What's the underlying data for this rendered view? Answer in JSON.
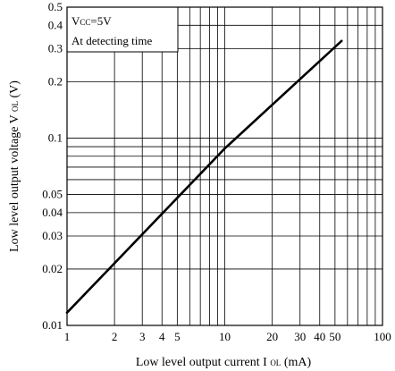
{
  "chart_data": {
    "type": "line",
    "xlabel_main": "Low level output current I",
    "xlabel_sub": "OL",
    "xlabel_unit": "(mA)",
    "ylabel_main": "Low level output voltage V",
    "ylabel_sub": "OL",
    "ylabel_unit": "(V)",
    "xscale": "log",
    "yscale": "log",
    "xlim": [
      1,
      100
    ],
    "ylim": [
      0.01,
      0.5
    ],
    "grid": true,
    "x_ticks": [
      {
        "value": 1,
        "label": "1"
      },
      {
        "value": 2,
        "label": "2"
      },
      {
        "value": 3,
        "label": "3"
      },
      {
        "value": 4,
        "label": "4"
      },
      {
        "value": 5,
        "label": "5"
      },
      {
        "value": 10,
        "label": "10"
      },
      {
        "value": 20,
        "label": "20"
      },
      {
        "value": 30,
        "label": "30"
      },
      {
        "value": 40,
        "label": "40"
      },
      {
        "value": 50,
        "label": "50"
      },
      {
        "value": 100,
        "label": "100"
      }
    ],
    "y_ticks": [
      {
        "value": 0.01,
        "label": "0.01"
      },
      {
        "value": 0.02,
        "label": "0.02"
      },
      {
        "value": 0.03,
        "label": "0.03"
      },
      {
        "value": 0.04,
        "label": "0.04"
      },
      {
        "value": 0.05,
        "label": "0.05"
      },
      {
        "value": 0.1,
        "label": "0.1"
      },
      {
        "value": 0.2,
        "label": "0.2"
      },
      {
        "value": 0.3,
        "label": "0.3"
      },
      {
        "value": 0.4,
        "label": "0.4"
      },
      {
        "value": 0.5,
        "label": "0.5"
      }
    ],
    "x_grid": [
      1,
      2,
      3,
      4,
      5,
      6,
      7,
      8,
      9,
      10,
      20,
      30,
      40,
      50,
      60,
      70,
      80,
      90,
      100
    ],
    "y_grid": [
      0.01,
      0.02,
      0.03,
      0.04,
      0.05,
      0.06,
      0.07,
      0.08,
      0.09,
      0.1,
      0.2,
      0.3,
      0.4,
      0.5
    ],
    "series": [
      {
        "x": [
          1,
          10,
          55
        ],
        "y": [
          0.0117,
          0.088,
          0.33
        ]
      }
    ],
    "annotation": {
      "line1_prefix": "V",
      "line1_sub": "CC",
      "line1_suffix": "=5V",
      "line2": "At detecting time"
    }
  }
}
